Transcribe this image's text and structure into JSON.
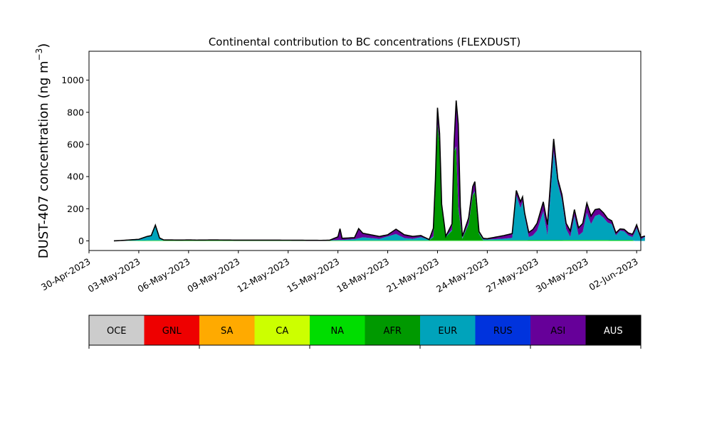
{
  "chart_data": {
    "type": "area",
    "title": "Continental contribution to BC concentrations (FLEXDUST)",
    "ylabel": "DUST-407 concentration (ng m",
    "ylabel_superscript": "−3",
    "ylabel_close": ")",
    "xlabel": "",
    "ylim": [
      -60,
      1180
    ],
    "yticks": [
      0,
      200,
      400,
      600,
      800,
      1000
    ],
    "xlim": [
      "2023-04-30T00:00",
      "2023-06-02T06:00"
    ],
    "xticks": [
      "30-Apr-2023",
      "03-May-2023",
      "06-May-2023",
      "09-May-2023",
      "12-May-2023",
      "15-May-2023",
      "18-May-2023",
      "21-May-2023",
      "24-May-2023",
      "27-May-2023",
      "30-May-2023",
      "02-Jun-2023"
    ],
    "xtick_dates": [
      "2023-04-30",
      "2023-05-03",
      "2023-05-06",
      "2023-05-09",
      "2023-05-12",
      "2023-05-15",
      "2023-05-18",
      "2023-05-21",
      "2023-05-24",
      "2023-05-27",
      "2023-05-30",
      "2023-06-02"
    ],
    "stack_order": [
      "NA",
      "AFR",
      "EUR",
      "ASI"
    ],
    "series": [
      {
        "name": "NA",
        "color": "#00dd00",
        "points": [
          [
            "2023-05-01T12:00",
            0
          ],
          [
            "2023-05-04T00:00",
            3
          ],
          [
            "2023-05-14T12:00",
            2
          ],
          [
            "2023-05-20T00:00",
            3
          ],
          [
            "2023-05-27T00:00",
            4
          ],
          [
            "2023-05-30T00:00",
            5
          ],
          [
            "2023-06-01T18:00",
            4
          ]
        ]
      },
      {
        "name": "AFR",
        "color": "#009900",
        "points": [
          [
            "2023-05-01T12:00",
            0
          ],
          [
            "2023-05-20T12:00",
            0
          ],
          [
            "2023-05-20T18:00",
            20
          ],
          [
            "2023-05-20T21:00",
            300
          ],
          [
            "2023-05-21T00:00",
            720
          ],
          [
            "2023-05-21T03:00",
            600
          ],
          [
            "2023-05-21T06:00",
            200
          ],
          [
            "2023-05-21T12:00",
            20
          ],
          [
            "2023-05-21T21:00",
            60
          ],
          [
            "2023-05-22T00:00",
            550
          ],
          [
            "2023-05-22T03:00",
            580
          ],
          [
            "2023-05-22T06:00",
            200
          ],
          [
            "2023-05-22T12:00",
            10
          ],
          [
            "2023-05-22T21:00",
            100
          ],
          [
            "2023-05-23T03:00",
            280
          ],
          [
            "2023-05-23T06:00",
            300
          ],
          [
            "2023-05-23T12:00",
            40
          ],
          [
            "2023-05-23T18:00",
            0
          ],
          [
            "2023-06-01T18:00",
            0
          ]
        ]
      },
      {
        "name": "EUR",
        "color": "#00a3bb",
        "points": [
          [
            "2023-05-01T12:00",
            0
          ],
          [
            "2023-05-02T00:00",
            2
          ],
          [
            "2023-05-02T12:00",
            5
          ],
          [
            "2023-05-03T00:00",
            8
          ],
          [
            "2023-05-03T12:00",
            25
          ],
          [
            "2023-05-03T18:00",
            30
          ],
          [
            "2023-05-04T00:00",
            95
          ],
          [
            "2023-05-04T06:00",
            15
          ],
          [
            "2023-05-04T12:00",
            3
          ],
          [
            "2023-05-05T12:00",
            2
          ],
          [
            "2023-05-06T00:00",
            3
          ],
          [
            "2023-05-06T12:00",
            2
          ],
          [
            "2023-05-07T12:00",
            3
          ],
          [
            "2023-05-09T00:00",
            2
          ],
          [
            "2023-05-12T00:00",
            2
          ],
          [
            "2023-05-14T00:00",
            1
          ],
          [
            "2023-05-15T00:00",
            3
          ],
          [
            "2023-05-15T12:00",
            5
          ],
          [
            "2023-05-16T00:00",
            8
          ],
          [
            "2023-05-16T12:00",
            20
          ],
          [
            "2023-05-17T00:00",
            15
          ],
          [
            "2023-05-17T12:00",
            10
          ],
          [
            "2023-05-18T00:00",
            25
          ],
          [
            "2023-05-18T12:00",
            40
          ],
          [
            "2023-05-19T00:00",
            15
          ],
          [
            "2023-05-19T12:00",
            10
          ],
          [
            "2023-05-20T00:00",
            20
          ],
          [
            "2023-05-20T12:00",
            5
          ],
          [
            "2023-05-24T00:00",
            5
          ],
          [
            "2023-05-25T00:00",
            10
          ],
          [
            "2023-05-25T12:00",
            15
          ],
          [
            "2023-05-25T18:00",
            280
          ],
          [
            "2023-05-26T00:00",
            200
          ],
          [
            "2023-05-26T03:00",
            240
          ],
          [
            "2023-05-26T06:00",
            150
          ],
          [
            "2023-05-26T12:00",
            20
          ],
          [
            "2023-05-26T18:00",
            30
          ],
          [
            "2023-05-27T00:00",
            60
          ],
          [
            "2023-05-27T06:00",
            140
          ],
          [
            "2023-05-27T09:00",
            180
          ],
          [
            "2023-05-27T15:00",
            30
          ],
          [
            "2023-05-28T00:00",
            550
          ],
          [
            "2023-05-28T06:00",
            350
          ],
          [
            "2023-05-28T12:00",
            250
          ],
          [
            "2023-05-28T18:00",
            70
          ],
          [
            "2023-05-29T00:00",
            20
          ],
          [
            "2023-05-29T06:00",
            150
          ],
          [
            "2023-05-29T12:00",
            30
          ],
          [
            "2023-05-29T18:00",
            50
          ],
          [
            "2023-05-30T00:00",
            170
          ],
          [
            "2023-05-30T06:00",
            100
          ],
          [
            "2023-05-30T12:00",
            150
          ],
          [
            "2023-05-30T18:00",
            160
          ],
          [
            "2023-05-31T00:00",
            140
          ],
          [
            "2023-05-31T06:00",
            110
          ],
          [
            "2023-05-31T12:00",
            100
          ],
          [
            "2023-05-31T18:00",
            30
          ],
          [
            "2023-06-01T00:00",
            60
          ],
          [
            "2023-06-01T06:00",
            55
          ],
          [
            "2023-06-01T12:00",
            30
          ],
          [
            "2023-06-01T18:00",
            20
          ],
          [
            "2023-06-02T00:00",
            80
          ],
          [
            "2023-06-02T06:00",
            10
          ],
          [
            "2023-06-02T12:00",
            25
          ]
        ]
      },
      {
        "name": "ASI",
        "color": "#660099",
        "points": [
          [
            "2023-05-01T12:00",
            0
          ],
          [
            "2023-05-14T12:00",
            0
          ],
          [
            "2023-05-15T00:00",
            20
          ],
          [
            "2023-05-15T03:00",
            70
          ],
          [
            "2023-05-15T06:00",
            10
          ],
          [
            "2023-05-16T00:00",
            10
          ],
          [
            "2023-05-16T06:00",
            60
          ],
          [
            "2023-05-16T12:00",
            25
          ],
          [
            "2023-05-17T00:00",
            20
          ],
          [
            "2023-05-18T00:00",
            10
          ],
          [
            "2023-05-18T12:00",
            30
          ],
          [
            "2023-05-19T00:00",
            20
          ],
          [
            "2023-05-19T12:00",
            15
          ],
          [
            "2023-05-20T00:00",
            10
          ],
          [
            "2023-05-20T12:00",
            0
          ],
          [
            "2023-05-21T00:00",
            100
          ],
          [
            "2023-05-21T06:00",
            20
          ],
          [
            "2023-05-21T12:00",
            0
          ],
          [
            "2023-05-22T00:00",
            50
          ],
          [
            "2023-05-22T06:00",
            520
          ],
          [
            "2023-05-22T09:00",
            100
          ],
          [
            "2023-05-22T12:00",
            10
          ],
          [
            "2023-05-23T03:00",
            50
          ],
          [
            "2023-05-23T06:00",
            60
          ],
          [
            "2023-05-23T12:00",
            10
          ],
          [
            "2023-05-24T00:00",
            5
          ],
          [
            "2023-05-25T18:00",
            30
          ],
          [
            "2023-05-26T00:00",
            40
          ],
          [
            "2023-05-26T06:00",
            20
          ],
          [
            "2023-05-28T00:00",
            80
          ],
          [
            "2023-05-28T06:00",
            30
          ],
          [
            "2023-05-29T06:00",
            40
          ],
          [
            "2023-05-30T00:00",
            60
          ],
          [
            "2023-05-30T12:00",
            40
          ],
          [
            "2023-05-31T00:00",
            30
          ],
          [
            "2023-06-01T00:00",
            10
          ],
          [
            "2023-06-02T00:00",
            20
          ],
          [
            "2023-06-02T12:00",
            5
          ]
        ]
      }
    ],
    "legend": [
      {
        "name": "OCE",
        "color": "#cccccc",
        "text_color": "#000000"
      },
      {
        "name": "GNL",
        "color": "#ee0000",
        "text_color": "#000000"
      },
      {
        "name": "SA",
        "color": "#ffaa00",
        "text_color": "#000000"
      },
      {
        "name": "CA",
        "color": "#ccff00",
        "text_color": "#000000"
      },
      {
        "name": "NA",
        "color": "#00dd00",
        "text_color": "#000000"
      },
      {
        "name": "AFR",
        "color": "#009900",
        "text_color": "#000000"
      },
      {
        "name": "EUR",
        "color": "#00a3bb",
        "text_color": "#000000"
      },
      {
        "name": "RUS",
        "color": "#0033dd",
        "text_color": "#000000"
      },
      {
        "name": "ASI",
        "color": "#660099",
        "text_color": "#000000"
      },
      {
        "name": "AUS",
        "color": "#000000",
        "text_color": "#ffffff"
      }
    ],
    "legend_placement": "below",
    "grid": false
  }
}
